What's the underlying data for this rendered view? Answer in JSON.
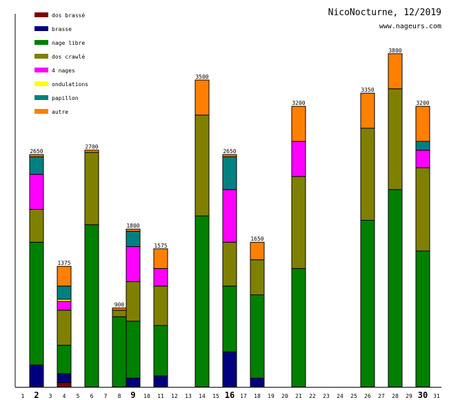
{
  "chart_data": {
    "type": "bar",
    "stacked": true,
    "title": "NicoNocturne, 12/2019",
    "subtitle": "www.nageurs.com",
    "xlabel": "",
    "ylabel": "",
    "ylim": [
      0,
      3500
    ],
    "grid": false,
    "legend_position": "top-left",
    "categories": [
      "1",
      "2",
      "3",
      "4",
      "5",
      "6",
      "7",
      "8",
      "9",
      "10",
      "11",
      "12",
      "13",
      "14",
      "15",
      "16",
      "17",
      "18",
      "19",
      "20",
      "21",
      "22",
      "23",
      "24",
      "25",
      "26",
      "27",
      "28",
      "29",
      "30",
      "31"
    ],
    "bold_categories": [
      "2",
      "9",
      "16",
      "30"
    ],
    "series": [
      {
        "name": "dos brassé",
        "color": "#800000",
        "values": [
          0,
          0,
          0,
          50,
          0,
          0,
          0,
          0,
          0,
          0,
          0,
          0,
          0,
          0,
          0,
          0,
          0,
          0,
          0,
          0,
          0,
          0,
          0,
          0,
          0,
          0,
          0,
          0,
          0,
          0,
          0
        ]
      },
      {
        "name": "brasse",
        "color": "#000080",
        "values": [
          0,
          250,
          0,
          100,
          0,
          0,
          0,
          0,
          100,
          0,
          125,
          0,
          0,
          0,
          0,
          400,
          0,
          100,
          0,
          0,
          0,
          0,
          0,
          0,
          0,
          0,
          0,
          0,
          0,
          0,
          0
        ]
      },
      {
        "name": "nage libre",
        "color": "#008000",
        "values": [
          0,
          1400,
          0,
          325,
          0,
          1850,
          0,
          800,
          650,
          0,
          575,
          0,
          0,
          1950,
          0,
          750,
          0,
          950,
          0,
          0,
          1350,
          0,
          0,
          0,
          0,
          1900,
          0,
          2250,
          0,
          1550,
          0
        ]
      },
      {
        "name": "dos crawlé",
        "color": "#808000",
        "values": [
          0,
          375,
          0,
          400,
          0,
          825,
          0,
          75,
          450,
          0,
          450,
          0,
          0,
          1150,
          0,
          500,
          0,
          400,
          0,
          0,
          1050,
          0,
          0,
          0,
          0,
          1050,
          0,
          1150,
          0,
          950,
          0
        ]
      },
      {
        "name": "4 nages",
        "color": "#ff00ff",
        "values": [
          0,
          400,
          0,
          100,
          0,
          0,
          0,
          0,
          400,
          0,
          200,
          0,
          0,
          0,
          0,
          600,
          0,
          0,
          0,
          0,
          400,
          0,
          0,
          0,
          0,
          0,
          0,
          0,
          0,
          200,
          0
        ]
      },
      {
        "name": "ondulations",
        "color": "#ffff00",
        "values": [
          0,
          0,
          0,
          25,
          0,
          0,
          0,
          0,
          0,
          0,
          0,
          0,
          0,
          0,
          0,
          0,
          0,
          0,
          0,
          0,
          0,
          0,
          0,
          0,
          0,
          0,
          0,
          0,
          0,
          0,
          0
        ]
      },
      {
        "name": "papillon",
        "color": "#008080",
        "values": [
          0,
          200,
          0,
          150,
          0,
          0,
          0,
          0,
          175,
          0,
          0,
          0,
          0,
          0,
          0,
          375,
          0,
          0,
          0,
          0,
          0,
          0,
          0,
          0,
          0,
          0,
          0,
          0,
          0,
          100,
          0
        ]
      },
      {
        "name": "autre",
        "color": "#ff8000",
        "values": [
          0,
          25,
          0,
          225,
          0,
          25,
          0,
          25,
          25,
          0,
          225,
          0,
          0,
          400,
          0,
          25,
          0,
          200,
          0,
          0,
          400,
          0,
          0,
          0,
          0,
          400,
          0,
          400,
          0,
          400,
          0
        ]
      }
    ],
    "totals": [
      0,
      2650,
      0,
      1375,
      0,
      2700,
      0,
      900,
      1800,
      0,
      1575,
      0,
      0,
      3500,
      0,
      2650,
      0,
      1650,
      0,
      0,
      3200,
      0,
      0,
      0,
      0,
      3350,
      0,
      3800,
      0,
      3200,
      0
    ]
  }
}
